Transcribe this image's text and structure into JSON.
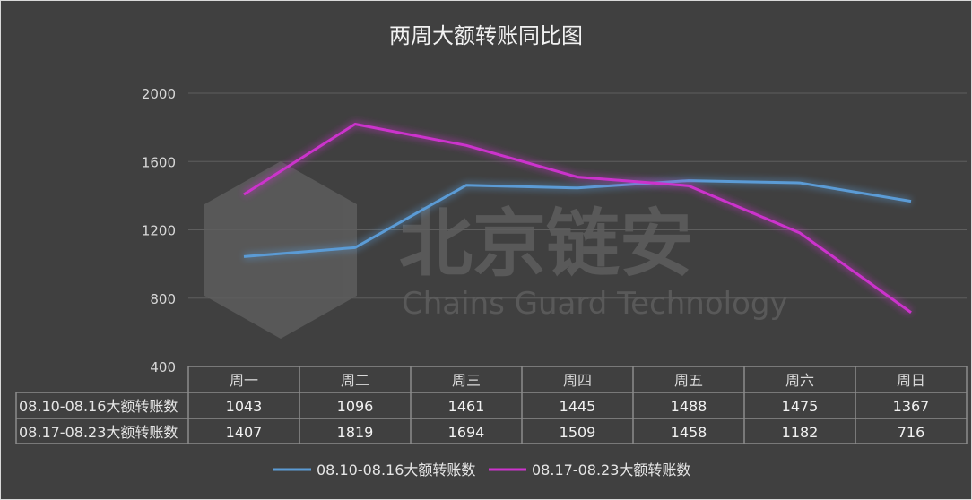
{
  "chart_data": {
    "type": "line",
    "title": "两周大额转账同比图",
    "categories": [
      "周一",
      "周二",
      "周三",
      "周四",
      "周五",
      "周六",
      "周日"
    ],
    "series": [
      {
        "name": "08.10-08.16大额转账数",
        "color": "#5b9bd5",
        "values": [
          1043,
          1096,
          1461,
          1445,
          1488,
          1475,
          1367
        ]
      },
      {
        "name": "08.17-08.23大额转账数",
        "color": "#cc33cc",
        "values": [
          1407,
          1819,
          1694,
          1509,
          1458,
          1182,
          716
        ]
      }
    ],
    "ylim": [
      400,
      2000
    ],
    "yticks": [
      400,
      800,
      1200,
      1600,
      2000
    ],
    "grid": true,
    "data_table": true,
    "legend_position": "bottom",
    "watermark": {
      "cn": "北京链安",
      "en": "Chains Guard Technology"
    },
    "background": "#404040"
  }
}
